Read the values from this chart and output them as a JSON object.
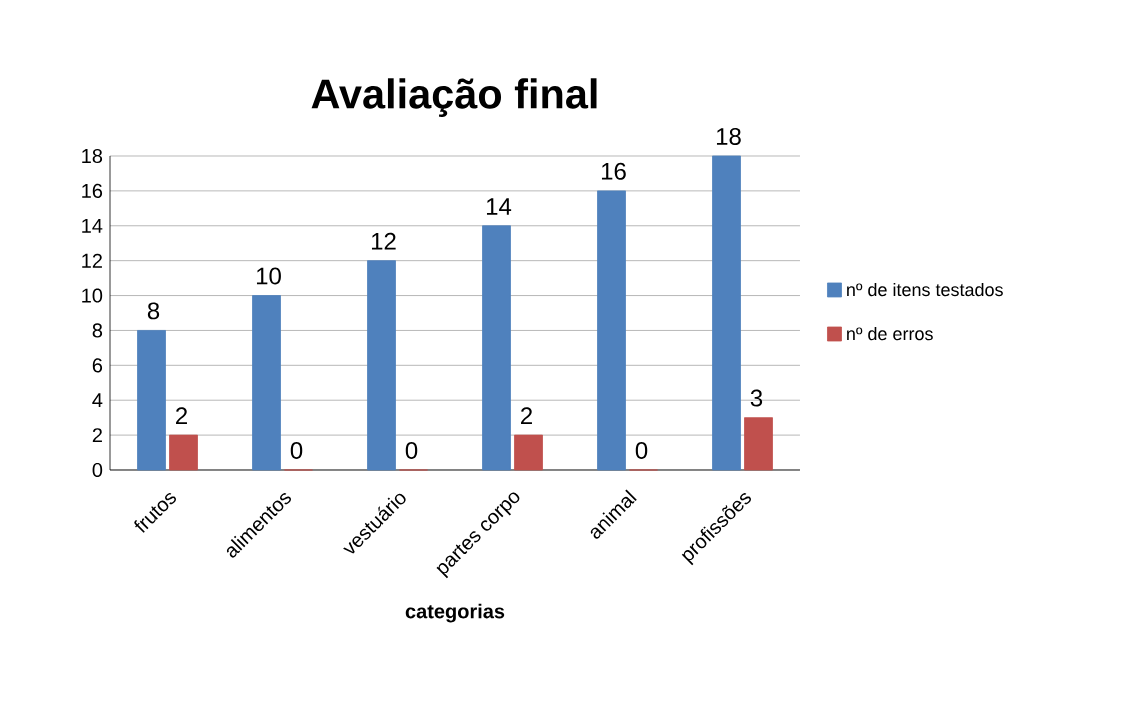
{
  "chart_data": {
    "type": "bar",
    "title": "Avaliação final",
    "xlabel": "categorias",
    "categories": [
      "frutos",
      "alimentos",
      "vestuário",
      "partes corpo",
      "animal",
      "profissões"
    ],
    "series": [
      {
        "name": "nº de itens testados",
        "color": "#4f81bd",
        "values": [
          8,
          10,
          12,
          14,
          16,
          18
        ]
      },
      {
        "name": "nº de erros",
        "color": "#c0504d",
        "values": [
          2,
          0,
          0,
          2,
          0,
          3
        ]
      }
    ],
    "ylim": [
      0,
      18
    ],
    "yticks": [
      0,
      2,
      4,
      6,
      8,
      10,
      12,
      14,
      16,
      18
    ],
    "grid": "y",
    "legend": "right",
    "data_labels": true
  }
}
